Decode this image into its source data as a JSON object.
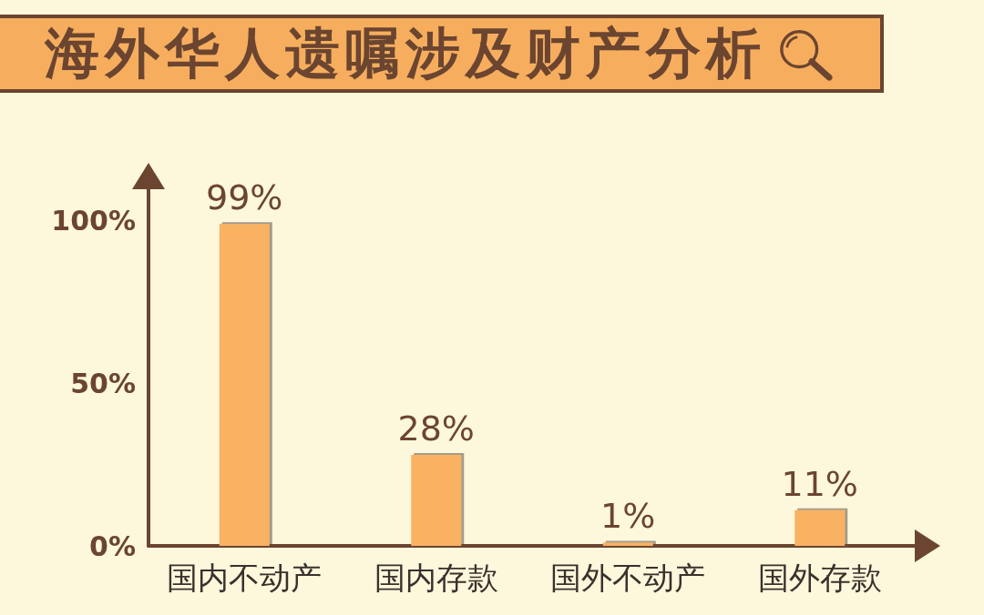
{
  "chart_data": {
    "type": "bar",
    "title": "海外华人遗嘱涉及财产分析",
    "categories": [
      "国内不动产",
      "国内存款",
      "国外不动产",
      "国外存款"
    ],
    "values": [
      99,
      28,
      1,
      11
    ],
    "value_labels": [
      "99%",
      "28%",
      "1%",
      "11%"
    ],
    "color": "#f8b262",
    "ylim": [
      0,
      110
    ],
    "yticks": [
      {
        "value": 0,
        "label": "0%"
      },
      {
        "value": 50,
        "label": "50%"
      },
      {
        "value": 100,
        "label": "100%"
      }
    ]
  }
}
